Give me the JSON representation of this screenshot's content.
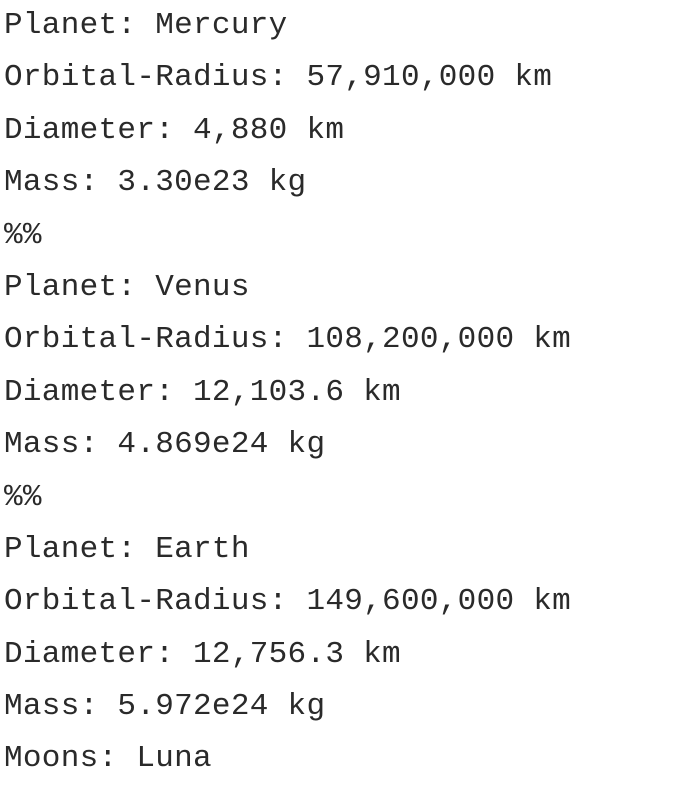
{
  "lines": [
    "Planet: Mercury",
    "Orbital-Radius: 57,910,000 km",
    "Diameter: 4,880 km",
    "Mass: 3.30e23 kg",
    "%%",
    "Planet: Venus",
    "Orbital-Radius: 108,200,000 km",
    "Diameter: 12,103.6 km",
    "Mass: 4.869e24 kg",
    "%%",
    "Planet: Earth",
    "Orbital-Radius: 149,600,000 km",
    "Diameter: 12,756.3 km",
    "Mass: 5.972e24 kg",
    "Moons: Luna"
  ]
}
